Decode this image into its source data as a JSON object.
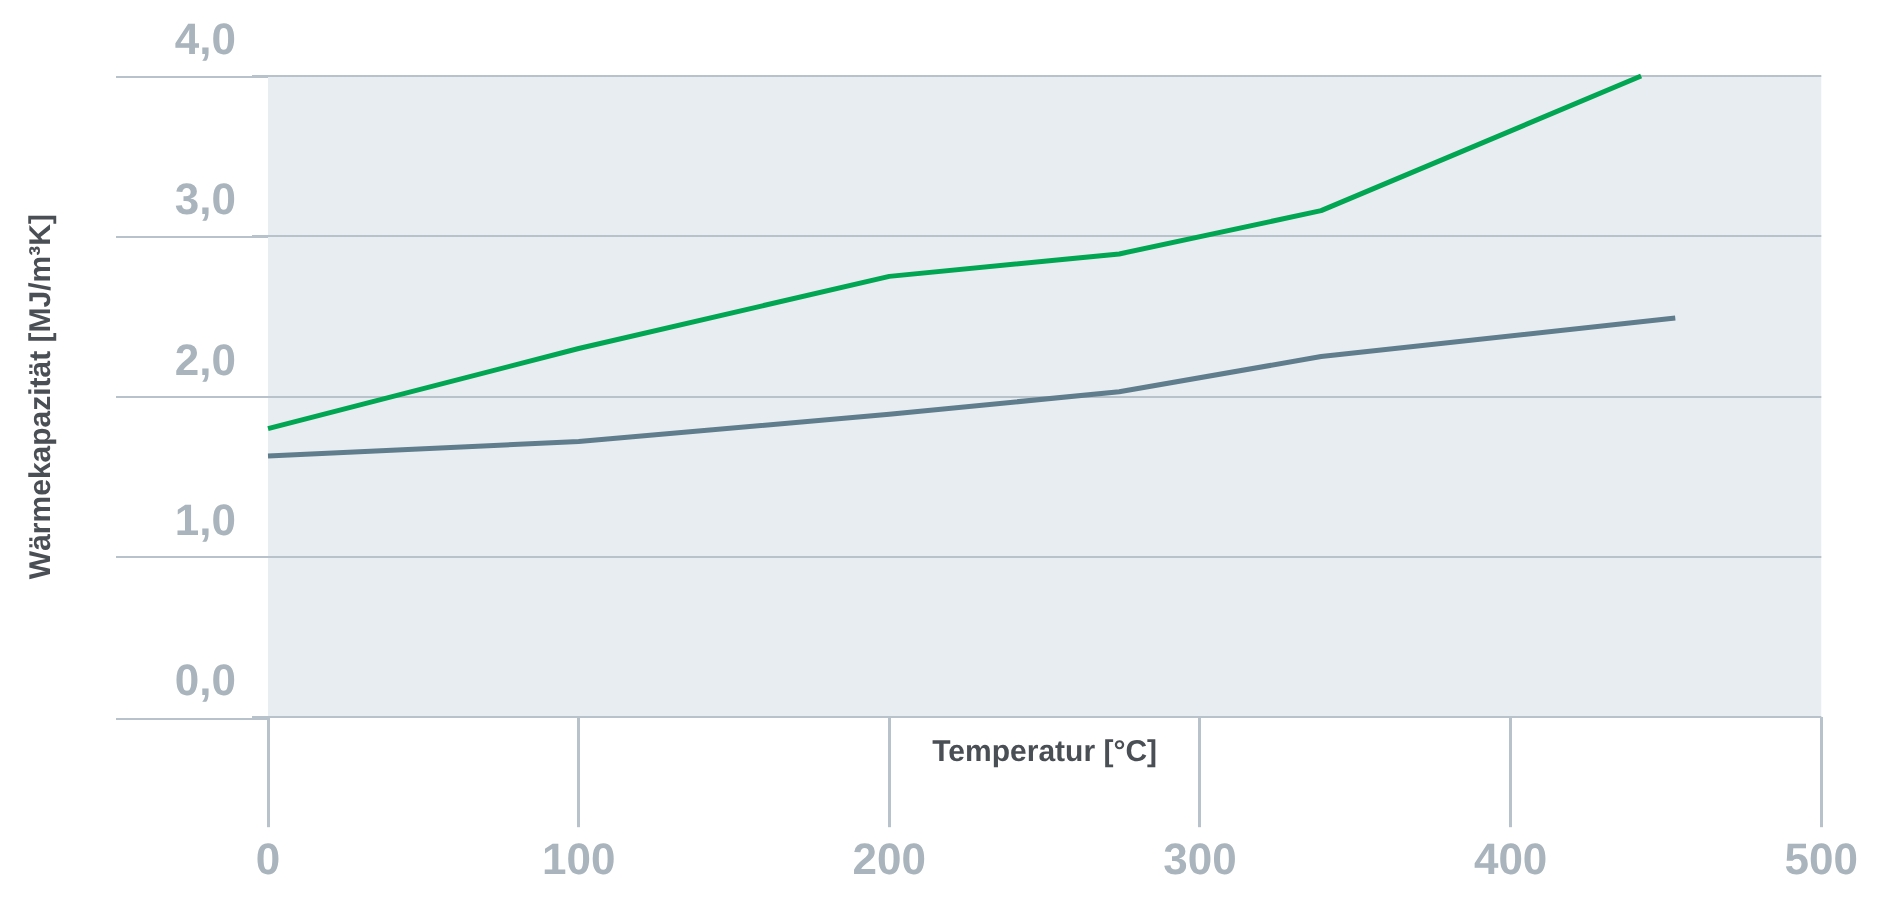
{
  "chart_data": {
    "type": "line",
    "xlabel": "Temperatur [°C]",
    "ylabel": "Wärmekapazität [MJ/m³K]",
    "series": [
      {
        "color": "#00a651",
        "x": [
          0,
          100,
          200,
          274,
          339,
          442
        ],
        "values": [
          1.8,
          2.3,
          2.75,
          2.89,
          3.16,
          4.0
        ]
      },
      {
        "color": "#5f7d8c",
        "x": [
          0,
          100,
          200,
          274,
          339,
          453
        ],
        "values": [
          1.63,
          1.72,
          1.89,
          2.03,
          2.25,
          2.49
        ]
      }
    ],
    "xlim": [
      0,
      500
    ],
    "xticks": [
      0,
      100,
      200,
      300,
      400,
      500
    ],
    "ylim": [
      0,
      4
    ],
    "yticks": [
      {
        "value": 0,
        "label": "0,0"
      },
      {
        "value": 1,
        "label": "1,0"
      },
      {
        "value": 2,
        "label": "2,0"
      },
      {
        "value": 3,
        "label": "3,0"
      },
      {
        "value": 4,
        "label": "4,0"
      }
    ],
    "grid": "y",
    "legend": false,
    "marker": "none",
    "line_style": "solid"
  }
}
